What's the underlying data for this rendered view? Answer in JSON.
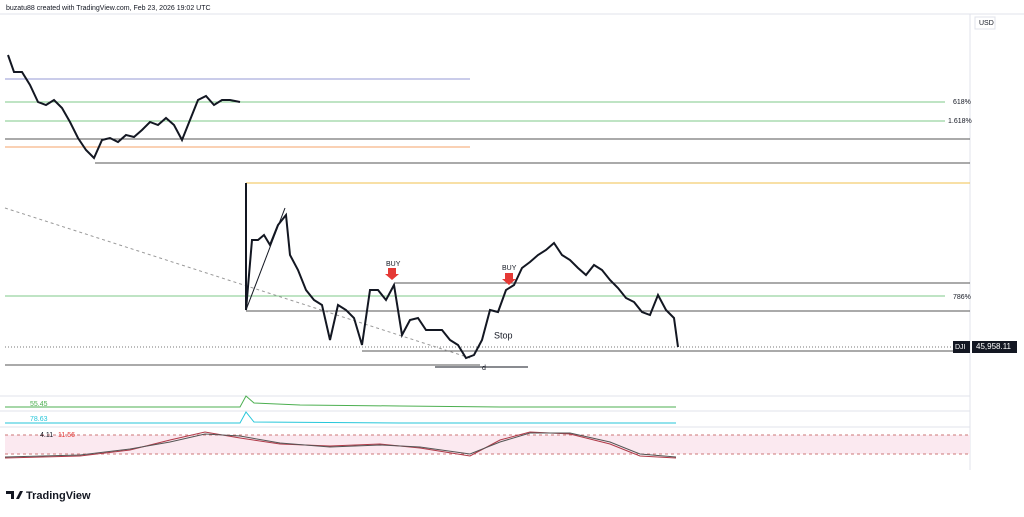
{
  "header": {
    "credit": "buzatu88 created with TradingView.com, Feb 23, 2026 19:02 UTC",
    "currency": "USD"
  },
  "levels": {
    "fib_618": "618%",
    "fib_1618": "1.618%",
    "fib_786": "786%"
  },
  "annotations": {
    "buy_1": "BUY",
    "buy_2": "BUY",
    "stop": "Stop",
    "d": "d"
  },
  "price_label": {
    "symbol": "DJI",
    "price": "45,958.11"
  },
  "indicators": {
    "rsi_1": "55.45",
    "rsi_2": "78.63",
    "osc_a": "4.11",
    "osc_b": "11.56"
  },
  "footer": {
    "brand": "TradingView"
  }
}
